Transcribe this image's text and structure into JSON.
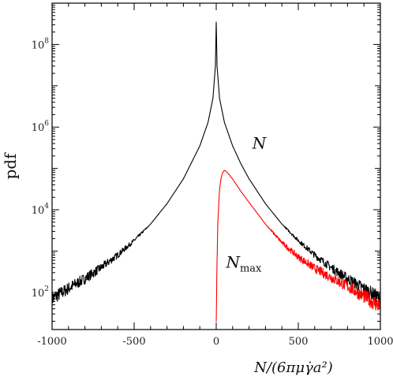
{
  "chart_data": {
    "type": "line",
    "title": "",
    "xlabel": "N/(6πμγ̇a²)",
    "ylabel": "pdf",
    "xlim": [
      -1000,
      1000
    ],
    "ylim_log10": [
      1.1,
      9.0
    ],
    "yscale": "log",
    "grid": false,
    "x_ticks": [
      -1000,
      -500,
      0,
      500,
      1000
    ],
    "x_tick_labels": [
      "-1000",
      "-500",
      "0",
      "500",
      "1000"
    ],
    "y_ticks": [
      100,
      10000,
      1000000,
      100000000
    ],
    "y_tick_labels": [
      {
        "base": "10",
        "exp": "2"
      },
      {
        "base": "10",
        "exp": "4"
      },
      {
        "base": "10",
        "exp": "6"
      },
      {
        "base": "10",
        "exp": "8"
      }
    ],
    "series": [
      {
        "name": "N",
        "color": "#000000",
        "x": [
          -1000,
          -900,
          -800,
          -700,
          -600,
          -500,
          -400,
          -300,
          -200,
          -100,
          -50,
          -20,
          -5,
          0,
          5,
          20,
          50,
          100,
          150,
          200,
          300,
          400,
          500,
          600,
          700,
          800,
          900,
          1000
        ],
        "y": [
          70,
          125,
          215,
          400,
          800,
          1800,
          4500,
          14000,
          56000,
          350000,
          1300000,
          5000000,
          30000000,
          350000000,
          30000000,
          5000000,
          1300000,
          350000,
          130000,
          56000,
          14000,
          4500,
          1800,
          800,
          400,
          215,
          125,
          70
        ]
      },
      {
        "name": "N_max",
        "color": "#ff0000",
        "x": [
          0,
          5,
          10,
          20,
          30,
          40,
          50,
          60,
          80,
          100,
          150,
          200,
          300,
          400,
          500,
          600,
          700,
          800,
          900,
          1000
        ],
        "y": [
          20,
          600,
          5000,
          30000,
          60000,
          80000,
          90000,
          85000,
          70000,
          55000,
          28000,
          15000,
          4500,
          1600,
          720,
          380,
          230,
          140,
          80,
          45
        ]
      }
    ],
    "annotations": [
      {
        "text": "N",
        "x": 220,
        "y": 300000
      },
      {
        "text": "N",
        "sub": "max",
        "x": 60,
        "y": 400
      }
    ]
  }
}
